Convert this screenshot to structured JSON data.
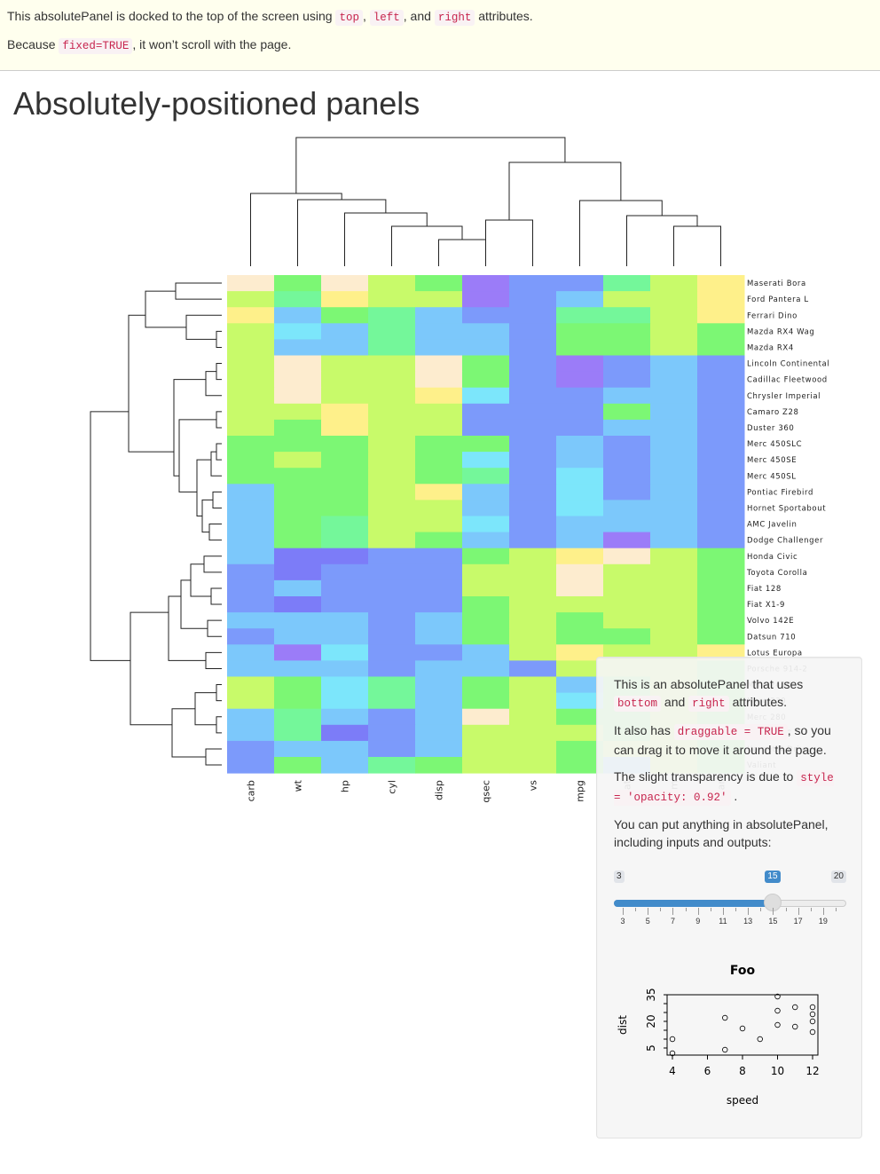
{
  "top_panel": {
    "line1": {
      "pre": "This absolutePanel is docked to the top of the screen using",
      "code1": "top",
      "sep1": ",",
      "code2": "left",
      "sep2": ", and",
      "code3": "right",
      "post": "attributes."
    },
    "line2": {
      "pre": "Because",
      "code": "fixed=TRUE",
      "post": ", it won’t scroll with the page."
    }
  },
  "page": {
    "title": "Absolutely-positioned panels"
  },
  "heatmap": {
    "columns": [
      "carb",
      "wt",
      "hp",
      "cyl",
      "disp",
      "qsec",
      "vs",
      "mpg",
      "drat",
      "am",
      "gear"
    ],
    "rows": [
      "Maserati Bora",
      "Ford Pantera L",
      "Ferrari Dino",
      "Mazda RX4 Wag",
      "Mazda RX4",
      "Lincoln Continental",
      "Cadillac Fleetwood",
      "Chrysler Imperial",
      "Camaro Z28",
      "Duster 360",
      "Merc 450SLC",
      "Merc 450SE",
      "Merc 450SL",
      "Pontiac Firebird",
      "Hornet Sportabout",
      "AMC Javelin",
      "Dodge Challenger",
      "Honda Civic",
      "Toyota Corolla",
      "Fiat 128",
      "Fiat X1-9",
      "Volvo 142E",
      "Datsun 710",
      "Lotus Europa",
      "Porsche 914-2",
      "Merc 240D",
      "Merc 230",
      "Merc 280",
      "Merc 280C",
      "Hornet 4 Drive",
      "Valiant"
    ],
    "colors": {
      "cream": "#fdeccf",
      "yellow": "#fef08a",
      "lime": "#c8fa6a",
      "green": "#7cf774",
      "mint": "#74f79a",
      "cyan": "#7ce6fb",
      "sky": "#7cc8fb",
      "blue": "#7c9afb",
      "indigo": "#7c7cf8",
      "violet": "#9b7cf8"
    }
  },
  "float_panel": {
    "p1_pre": "This is an absolutePanel that uses",
    "p1_code1": "bottom",
    "p1_and": "and",
    "p1_code2": "right",
    "p1_post": "attributes.",
    "p2_pre": "It also has",
    "p2_code": "draggable = TRUE",
    "p2_post": ", so you can drag it to move it around the page.",
    "p3_pre": "The slight transparency is due to",
    "p3_code": "style = 'opacity: 0.92'",
    "p3_post": ".",
    "p4": "You can put anything in absolutePanel, including inputs and outputs:",
    "slider": {
      "min": 3,
      "max": 20,
      "value": 15,
      "min_label": "3",
      "max_label": "20",
      "value_label": "15",
      "tick_labels": [
        "3",
        "5",
        "7",
        "9",
        "11",
        "13",
        "15",
        "17",
        "19"
      ]
    }
  },
  "chart_data": {
    "type": "scatter",
    "title": "Foo",
    "xlabel": "speed",
    "ylabel": "dist",
    "xlim": [
      4,
      12
    ],
    "ylim": [
      2,
      34
    ],
    "x_ticks": [
      "4",
      "6",
      "8",
      "10",
      "12"
    ],
    "y_ticks": [
      "5",
      "20",
      "35"
    ],
    "x": [
      4,
      4,
      7,
      7,
      8,
      9,
      10,
      10,
      10,
      11,
      11,
      12,
      12,
      12,
      12
    ],
    "y": [
      2,
      10,
      4,
      22,
      16,
      10,
      18,
      26,
      34,
      17,
      28,
      14,
      20,
      24,
      28
    ]
  }
}
